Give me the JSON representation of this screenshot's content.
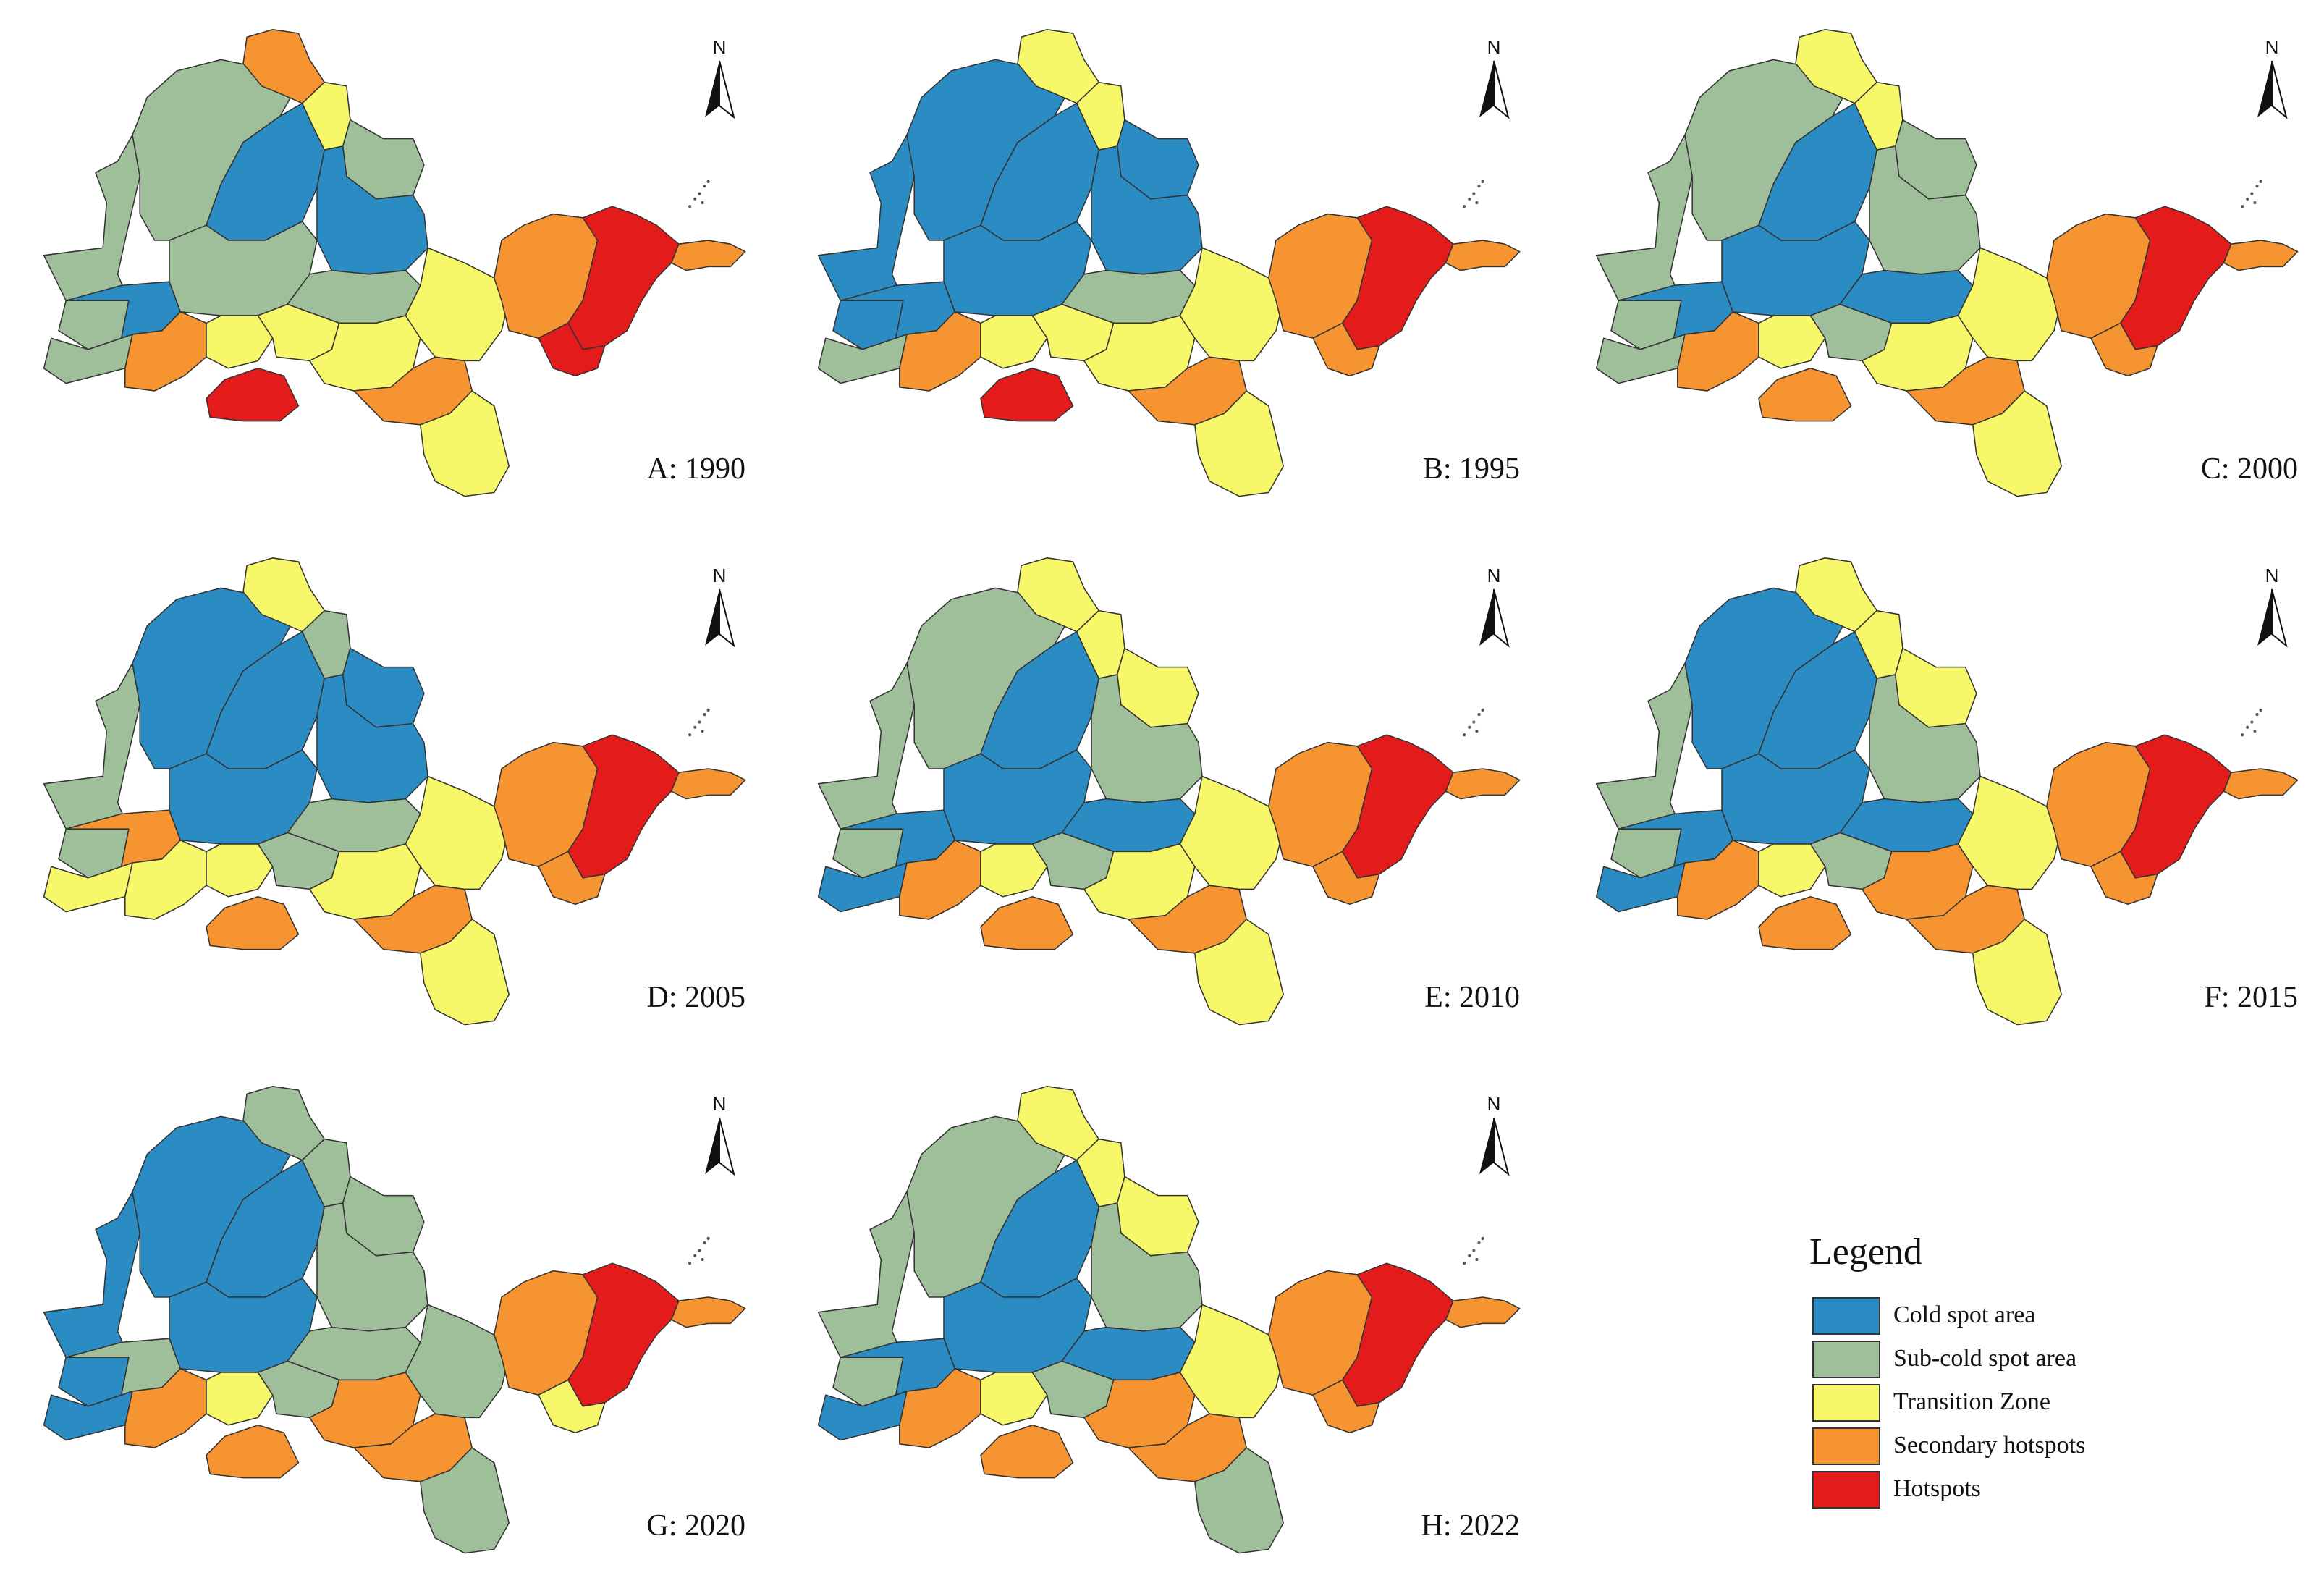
{
  "map": {
    "north_label": "N",
    "panels": [
      {
        "label": "A: 1990",
        "classes": {
          "northTop": "secondary",
          "northTail": "transition",
          "westOuter": "subcold",
          "westInner": "subcold",
          "centerNorth": "cold",
          "centerNE": "cold",
          "centerSouth": "subcold",
          "centerSE": "subcold",
          "westBandA": "subcold",
          "westBandB": "cold",
          "southWest": "secondary",
          "southWestB": "transition",
          "southSpot": "hot",
          "midSouthA": "transition",
          "midSouthB": "secondary",
          "southTail": "transition",
          "middleLink": "transition",
          "eastInner": "secondary",
          "eastCore": "hot",
          "eastTip": "secondary",
          "eastSouth": "hot",
          "gapA": "transition",
          "northeastLobe": "subcold"
        }
      },
      {
        "label": "B: 1995",
        "classes": {
          "northTop": "transition",
          "northTail": "transition",
          "westOuter": "cold",
          "westInner": "cold",
          "centerNorth": "cold",
          "centerNE": "cold",
          "centerSouth": "cold",
          "centerSE": "subcold",
          "westBandA": "subcold",
          "westBandB": "cold",
          "southWest": "secondary",
          "southWestB": "transition",
          "southSpot": "hot",
          "midSouthA": "transition",
          "midSouthB": "secondary",
          "southTail": "transition",
          "middleLink": "transition",
          "eastInner": "secondary",
          "eastCore": "hot",
          "eastTip": "secondary",
          "eastSouth": "secondary",
          "gapA": "transition",
          "northeastLobe": "cold"
        }
      },
      {
        "label": "C: 2000",
        "classes": {
          "northTop": "transition",
          "northTail": "transition",
          "westOuter": "subcold",
          "westInner": "subcold",
          "centerNorth": "cold",
          "centerNE": "subcold",
          "centerSouth": "cold",
          "centerSE": "cold",
          "westBandA": "subcold",
          "westBandB": "cold",
          "southWest": "secondary",
          "southWestB": "transition",
          "southSpot": "secondary",
          "midSouthA": "transition",
          "midSouthB": "secondary",
          "southTail": "transition",
          "middleLink": "transition",
          "eastInner": "secondary",
          "eastCore": "hot",
          "eastTip": "secondary",
          "eastSouth": "secondary",
          "gapA": "subcold",
          "northeastLobe": "subcold"
        }
      },
      {
        "label": "D: 2005",
        "classes": {
          "northTop": "transition",
          "northTail": "subcold",
          "westOuter": "subcold",
          "westInner": "cold",
          "centerNorth": "cold",
          "centerNE": "cold",
          "centerSouth": "cold",
          "centerSE": "subcold",
          "westBandA": "transition",
          "westBandB": "secondary",
          "southWest": "transition",
          "southWestB": "transition",
          "southSpot": "secondary",
          "midSouthA": "transition",
          "midSouthB": "secondary",
          "southTail": "transition",
          "middleLink": "transition",
          "eastInner": "secondary",
          "eastCore": "hot",
          "eastTip": "secondary",
          "eastSouth": "secondary",
          "gapA": "subcold",
          "northeastLobe": "cold"
        }
      },
      {
        "label": "E: 2010",
        "classes": {
          "northTop": "transition",
          "northTail": "transition",
          "westOuter": "subcold",
          "westInner": "subcold",
          "centerNorth": "cold",
          "centerNE": "subcold",
          "centerSouth": "cold",
          "centerSE": "cold",
          "westBandA": "cold",
          "westBandB": "cold",
          "southWest": "secondary",
          "southWestB": "transition",
          "southSpot": "secondary",
          "midSouthA": "transition",
          "midSouthB": "secondary",
          "southTail": "transition",
          "middleLink": "transition",
          "eastInner": "secondary",
          "eastCore": "hot",
          "eastTip": "secondary",
          "eastSouth": "secondary",
          "gapA": "subcold",
          "northeastLobe": "transition"
        }
      },
      {
        "label": "F: 2015",
        "classes": {
          "northTop": "transition",
          "northTail": "transition",
          "westOuter": "subcold",
          "westInner": "cold",
          "centerNorth": "cold",
          "centerNE": "subcold",
          "centerSouth": "cold",
          "centerSE": "cold",
          "westBandA": "cold",
          "westBandB": "cold",
          "southWest": "secondary",
          "southWestB": "transition",
          "southSpot": "secondary",
          "midSouthA": "secondary",
          "midSouthB": "secondary",
          "southTail": "transition",
          "middleLink": "transition",
          "eastInner": "secondary",
          "eastCore": "hot",
          "eastTip": "secondary",
          "eastSouth": "secondary",
          "gapA": "subcold",
          "northeastLobe": "transition"
        }
      },
      {
        "label": "G: 2020",
        "classes": {
          "northTop": "subcold",
          "northTail": "subcold",
          "westOuter": "cold",
          "westInner": "cold",
          "centerNorth": "cold",
          "centerNE": "subcold",
          "centerSouth": "cold",
          "centerSE": "subcold",
          "westBandA": "cold",
          "westBandB": "subcold",
          "southWest": "secondary",
          "southWestB": "transition",
          "southSpot": "secondary",
          "midSouthA": "secondary",
          "midSouthB": "secondary",
          "southTail": "subcold",
          "middleLink": "subcold",
          "eastInner": "secondary",
          "eastCore": "hot",
          "eastTip": "secondary",
          "eastSouth": "transition",
          "gapA": "subcold",
          "northeastLobe": "subcold"
        }
      },
      {
        "label": "H: 2022",
        "classes": {
          "northTop": "transition",
          "northTail": "transition",
          "westOuter": "subcold",
          "westInner": "subcold",
          "centerNorth": "cold",
          "centerNE": "subcold",
          "centerSouth": "cold",
          "centerSE": "cold",
          "westBandA": "cold",
          "westBandB": "cold",
          "southWest": "secondary",
          "southWestB": "transition",
          "southSpot": "secondary",
          "midSouthA": "secondary",
          "midSouthB": "secondary",
          "southTail": "subcold",
          "middleLink": "transition",
          "eastInner": "secondary",
          "eastCore": "hot",
          "eastTip": "secondary",
          "eastSouth": "secondary",
          "gapA": "subcold",
          "northeastLobe": "transition"
        }
      }
    ]
  },
  "legend": {
    "title": "Legend",
    "items": [
      {
        "key": "cold",
        "label": "Cold spot area",
        "color": "#2b8cc4"
      },
      {
        "key": "subcold",
        "label": "Sub-cold spot area",
        "color": "#9fbf9a"
      },
      {
        "key": "transition",
        "label": "Transition Zone",
        "color": "#f7f76a"
      },
      {
        "key": "secondary",
        "label": "Secondary hotspots",
        "color": "#f59431"
      },
      {
        "key": "hot",
        "label": "Hotspots",
        "color": "#e41b1b"
      }
    ]
  }
}
